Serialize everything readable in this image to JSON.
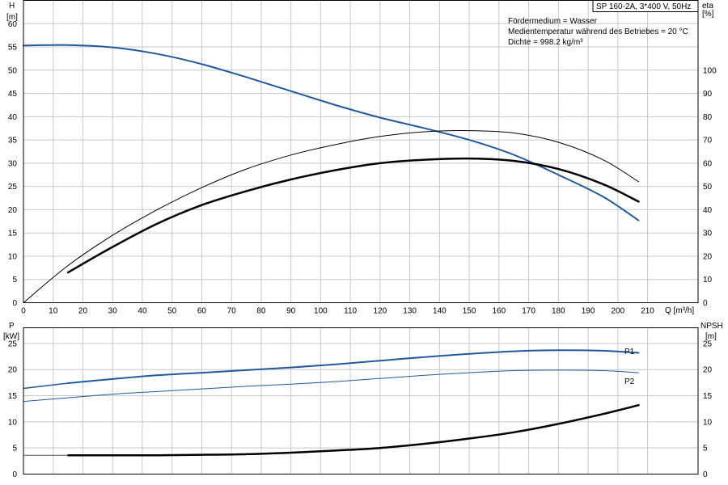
{
  "chart_data": [
    {
      "type": "line",
      "title": "SP 160-2A, 3*400 V, 50Hz",
      "info": [
        "Fördermedium = Wasser",
        "Medientemperatur während des Betriebes = 20 °C",
        "Dichte = 998.2 kg/m³"
      ],
      "xlabel": "Q [m³/h]",
      "x_axis": {
        "unit": "Q [m³/h]",
        "ticks": [
          0,
          10,
          20,
          30,
          40,
          50,
          60,
          70,
          80,
          90,
          100,
          110,
          120,
          130,
          140,
          150,
          160,
          170,
          180,
          190,
          200,
          210
        ],
        "range": [
          0,
          227
        ]
      },
      "y_left": {
        "label": "H",
        "unit": "[m]",
        "ticks": [
          0,
          5,
          10,
          15,
          20,
          25,
          30,
          35,
          40,
          45,
          50,
          55,
          60
        ],
        "range": [
          0,
          65
        ]
      },
      "y_right": {
        "label": "eta",
        "unit": "[%]",
        "ticks": [
          0,
          10,
          20,
          30,
          40,
          50,
          60,
          70,
          80,
          90,
          100
        ],
        "range": [
          0,
          130
        ]
      },
      "grid": true,
      "series": [
        {
          "axis": "left",
          "color": "#1f5aa0",
          "width": 2,
          "x": [
            0,
            15,
            30,
            45,
            60,
            75,
            90,
            105,
            120,
            135,
            150,
            165,
            180,
            195,
            207
          ],
          "y": [
            55.3,
            55.4,
            54.9,
            53.5,
            51.3,
            48.5,
            45.5,
            42.5,
            39.8,
            37.5,
            35.0,
            31.8,
            27.5,
            22.8,
            17.7
          ]
        },
        {
          "axis": "right",
          "color": "#000000",
          "width": 1,
          "x": [
            0,
            15,
            30,
            45,
            60,
            75,
            90,
            105,
            120,
            135,
            150,
            165,
            180,
            195,
            207
          ],
          "y": [
            0,
            16.0,
            29.0,
            40.0,
            49.5,
            57.5,
            63.5,
            68.0,
            71.5,
            73.5,
            74.0,
            73.0,
            69.0,
            61.5,
            52.0
          ]
        },
        {
          "axis": "right",
          "color": "#000000",
          "width": 2.5,
          "x": [
            15,
            30,
            45,
            60,
            75,
            90,
            105,
            120,
            135,
            150,
            165,
            180,
            195,
            207
          ],
          "y": [
            13.0,
            24.0,
            34.0,
            42.0,
            48.0,
            53.0,
            57.0,
            60.0,
            61.5,
            62.0,
            61.0,
            57.5,
            51.0,
            43.5
          ]
        }
      ]
    },
    {
      "type": "line",
      "xlabel": "",
      "x_axis": {
        "ticks": [
          0,
          10,
          20,
          30,
          40,
          50,
          60,
          70,
          80,
          90,
          100,
          110,
          120,
          130,
          140,
          150,
          160,
          170,
          180,
          190,
          200,
          210
        ],
        "range": [
          0,
          227
        ]
      },
      "y_left": {
        "label": "P",
        "unit": "[kW]",
        "ticks": [
          0,
          5,
          10,
          15,
          20,
          25
        ],
        "range": [
          0,
          28
        ]
      },
      "y_right": {
        "label": "NPSH",
        "unit": "[m]",
        "ticks": [
          0,
          5,
          10,
          15,
          20,
          25
        ],
        "range": [
          0,
          28
        ]
      },
      "grid": true,
      "series": [
        {
          "name": "P1",
          "axis": "left",
          "color": "#1f5aa0",
          "width": 2,
          "x": [
            15,
            30,
            45,
            60,
            75,
            90,
            105,
            120,
            135,
            150,
            165,
            180,
            195,
            207
          ],
          "y": [
            17.4,
            18.2,
            18.9,
            19.4,
            19.9,
            20.4,
            21.0,
            21.7,
            22.4,
            23.0,
            23.5,
            23.7,
            23.6,
            23.2
          ]
        },
        {
          "name": "",
          "axis": "left",
          "color": "#1f5aa0",
          "width": 1.5,
          "x": [
            0,
            15
          ],
          "y": [
            16.4,
            17.4
          ]
        },
        {
          "name": "P2",
          "axis": "left",
          "color": "#1f5aa0",
          "width": 1,
          "x": [
            0,
            15,
            30,
            45,
            60,
            75,
            90,
            105,
            120,
            135,
            150,
            165,
            180,
            195,
            207
          ],
          "y": [
            13.9,
            14.6,
            15.3,
            15.8,
            16.3,
            16.8,
            17.2,
            17.7,
            18.3,
            18.9,
            19.4,
            19.8,
            19.9,
            19.8,
            19.4
          ]
        },
        {
          "name": "",
          "axis": "right",
          "color": "#000000",
          "width": 2.5,
          "x": [
            15,
            30,
            45,
            60,
            75,
            90,
            105,
            120,
            135,
            150,
            165,
            180,
            195,
            207
          ],
          "y": [
            3.6,
            3.6,
            3.6,
            3.7,
            3.8,
            4.1,
            4.5,
            5.0,
            5.8,
            6.8,
            8.0,
            9.6,
            11.5,
            13.2
          ]
        },
        {
          "name": "",
          "axis": "right",
          "color": "#555555",
          "width": 1,
          "x": [
            0,
            15
          ],
          "y": [
            3.6,
            3.6
          ]
        }
      ]
    }
  ]
}
